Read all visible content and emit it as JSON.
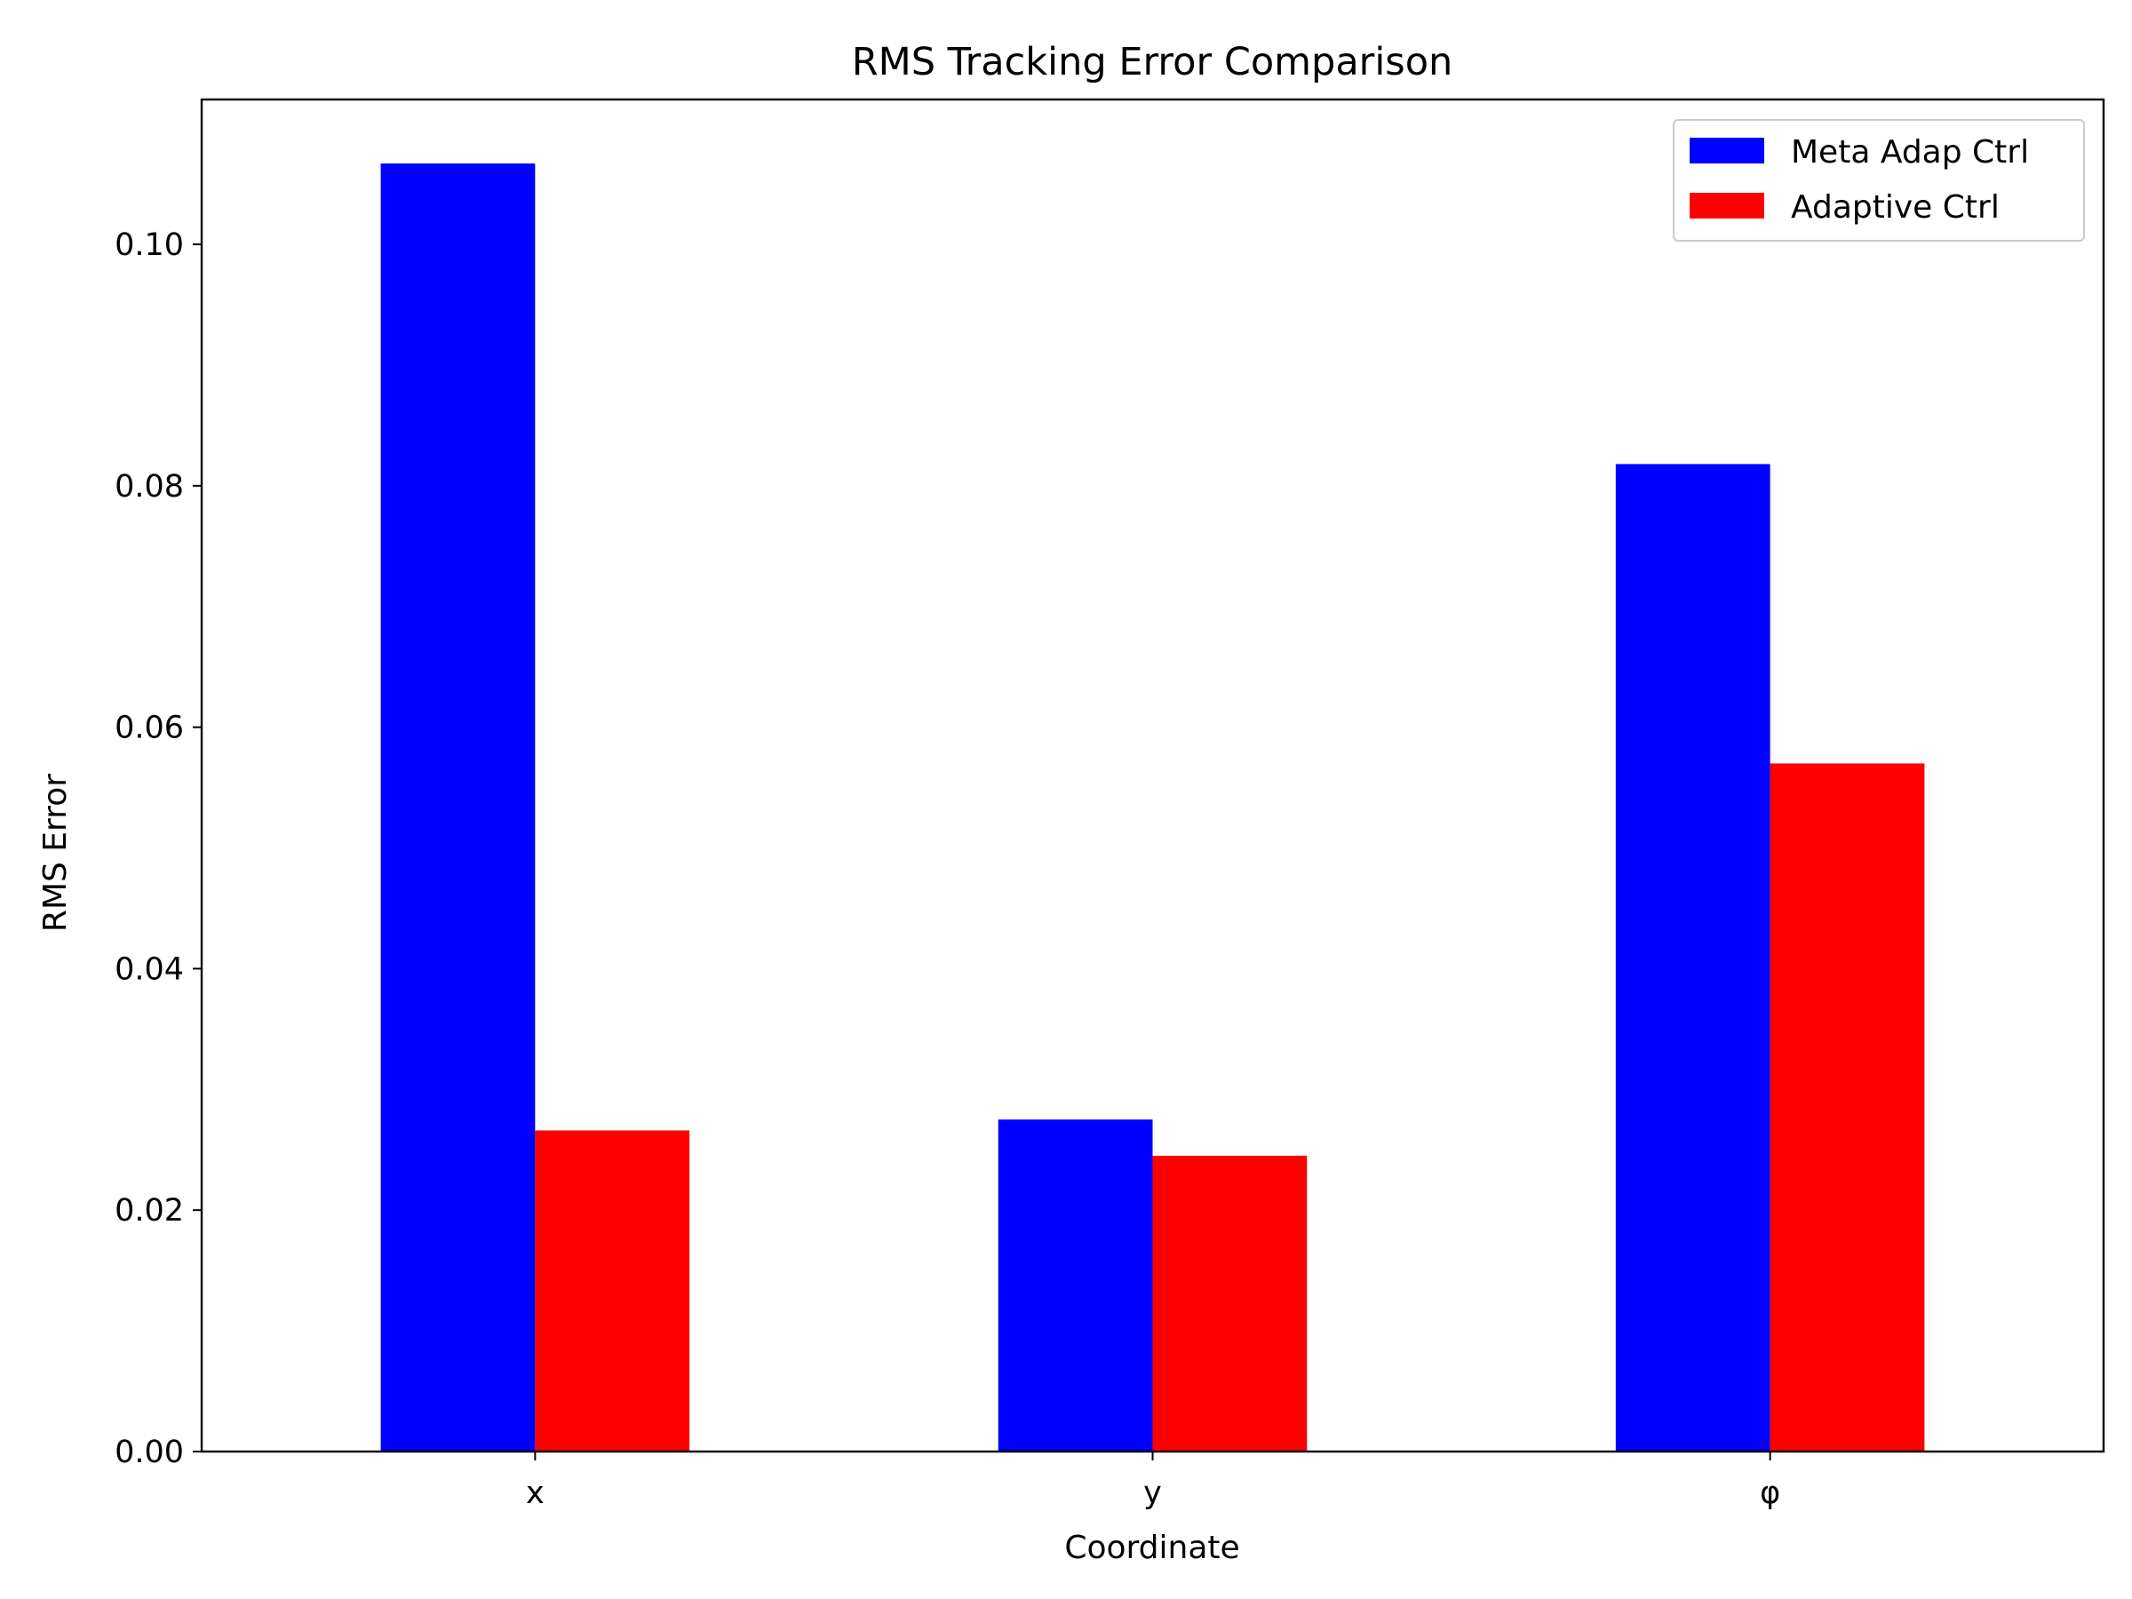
{
  "chart_data": {
    "type": "bar",
    "title": "RMS Tracking Error Comparison",
    "xlabel": "Coordinate",
    "ylabel": "RMS Error",
    "categories": [
      "x",
      "y",
      "φ"
    ],
    "series": [
      {
        "name": "Meta Adap Ctrl",
        "color": "#0000ff",
        "values": [
          0.1067,
          0.0275,
          0.0818
        ]
      },
      {
        "name": "Adaptive Ctrl",
        "color": "#ff0000",
        "values": [
          0.0266,
          0.0245,
          0.057
        ]
      }
    ],
    "ylim": [
      0,
      0.112
    ],
    "yticks": [
      0.0,
      0.02,
      0.04,
      0.06,
      0.08,
      0.1
    ],
    "ytick_labels": [
      "0.00",
      "0.02",
      "0.04",
      "0.06",
      "0.08",
      "0.10"
    ],
    "grid": false,
    "legend_position": "top-right"
  }
}
